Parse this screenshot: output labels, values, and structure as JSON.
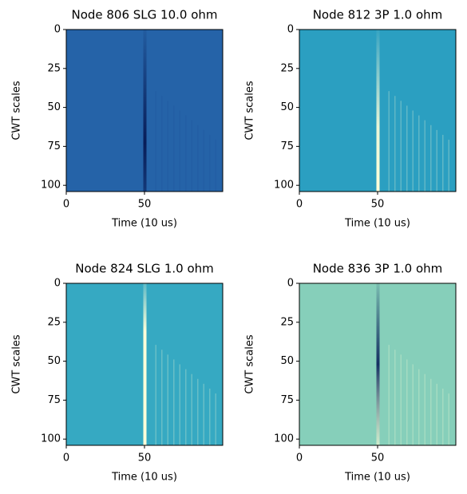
{
  "chart_data": [
    {
      "type": "heatmap",
      "title": "Node 806 SLG 10.0 ohm",
      "xlabel": "Time (10 us)",
      "ylabel": "CWT scales",
      "xlim": [
        0,
        100
      ],
      "ylim": [
        104,
        0
      ],
      "xticks": [
        0,
        50
      ],
      "yticks": [
        0,
        25,
        50,
        75,
        100
      ],
      "color": "#2563a8"
    },
    {
      "type": "heatmap",
      "title": "Node 812 3P 1.0 ohm",
      "xlabel": "Time (10 us)",
      "ylabel": "CWT scales",
      "xlim": [
        0,
        100
      ],
      "ylim": [
        104,
        0
      ],
      "xticks": [
        0,
        50
      ],
      "yticks": [
        0,
        25,
        50,
        75,
        100
      ],
      "color": "#2b9fc1"
    },
    {
      "type": "heatmap",
      "title": "Node 824 SLG 1.0 ohm",
      "xlabel": "Time (10 us)",
      "ylabel": "CWT scales",
      "xlim": [
        0,
        100
      ],
      "ylim": [
        104,
        0
      ],
      "xticks": [
        0,
        50
      ],
      "yticks": [
        0,
        25,
        50,
        75,
        100
      ],
      "color": "#36a9c2"
    },
    {
      "type": "heatmap",
      "title": "Node 836 3P 1.0 ohm",
      "xlabel": "Time (10 us)",
      "ylabel": "CWT scales",
      "xlim": [
        0,
        100
      ],
      "ylim": [
        104,
        0
      ],
      "xticks": [
        0,
        50
      ],
      "yticks": [
        0,
        25,
        50,
        75,
        100
      ],
      "color": "#86cfba"
    }
  ]
}
